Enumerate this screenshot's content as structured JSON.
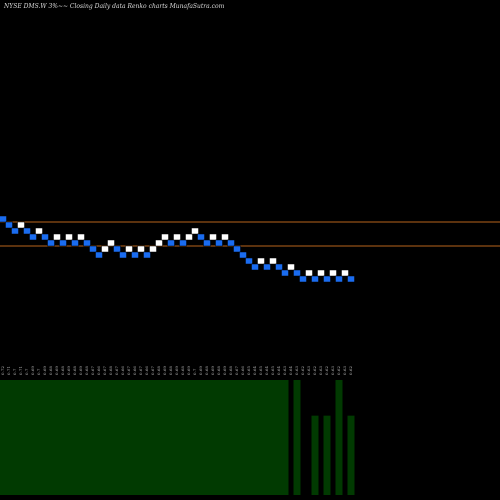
{
  "chart_data": {
    "type": "renko",
    "title": "NYSE DMS.W 3%~~  Closing Daily data  Renko  charts MunafaSutra.com",
    "values": [
      0.72,
      0.71,
      0.7,
      0.71,
      0.7,
      0.69,
      0.7,
      0.69,
      0.68,
      0.69,
      0.68,
      0.69,
      0.68,
      0.69,
      0.68,
      0.67,
      0.66,
      0.67,
      0.68,
      0.67,
      0.66,
      0.67,
      0.66,
      0.67,
      0.66,
      0.67,
      0.68,
      0.69,
      0.68,
      0.69,
      0.68,
      0.69,
      0.7,
      0.69,
      0.68,
      0.69,
      0.68,
      0.69,
      0.68,
      0.67,
      0.66,
      0.65,
      0.64,
      0.65,
      0.64,
      0.65,
      0.64,
      0.63,
      0.64,
      0.63,
      0.62,
      0.63,
      0.62,
      0.63,
      0.62,
      0.63,
      0.62,
      0.63,
      0.62
    ],
    "directions": [
      "down",
      "down",
      "down",
      "up",
      "down",
      "down",
      "up",
      "down",
      "down",
      "up",
      "down",
      "up",
      "down",
      "up",
      "down",
      "down",
      "down",
      "up",
      "up",
      "down",
      "down",
      "up",
      "down",
      "up",
      "down",
      "up",
      "up",
      "up",
      "down",
      "up",
      "down",
      "up",
      "up",
      "down",
      "down",
      "up",
      "down",
      "up",
      "down",
      "down",
      "down",
      "down",
      "down",
      "up",
      "down",
      "up",
      "down",
      "down",
      "up",
      "down",
      "down",
      "up",
      "down",
      "up",
      "down",
      "up",
      "down",
      "up",
      "down"
    ],
    "up_color": "#ffffff",
    "down_color": "#1a6cf0",
    "ylim": [
      0.56,
      0.76
    ],
    "hlines": [
      0.715,
      0.675
    ],
    "hline_color": "#b8651b",
    "volume": [
      100,
      100,
      100,
      100,
      100,
      100,
      100,
      100,
      100,
      100,
      100,
      100,
      100,
      100,
      100,
      100,
      100,
      100,
      100,
      100,
      100,
      100,
      100,
      100,
      100,
      100,
      100,
      100,
      100,
      100,
      100,
      100,
      100,
      100,
      100,
      100,
      100,
      100,
      100,
      100,
      100,
      100,
      100,
      100,
      100,
      100,
      100,
      100,
      0,
      100,
      0,
      0,
      69,
      0,
      69,
      0,
      100,
      0,
      69
    ],
    "volume_lim": [
      0,
      100
    ],
    "volume_color": "#013a01"
  }
}
